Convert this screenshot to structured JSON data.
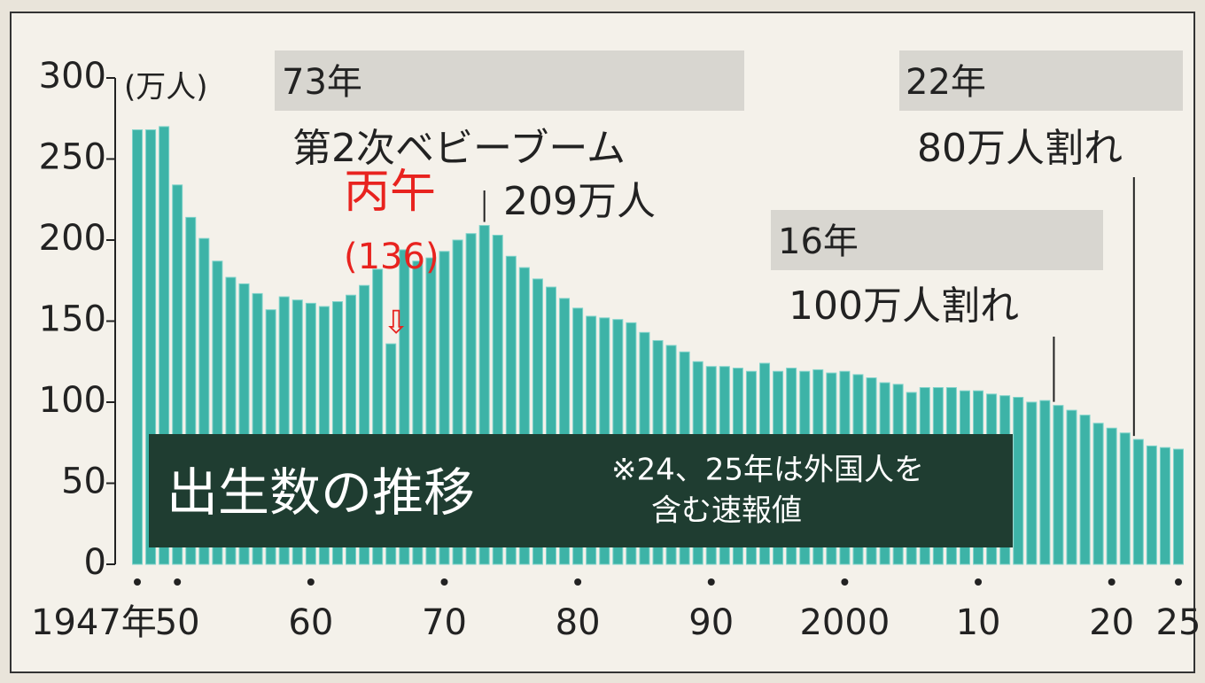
{
  "chart_data": {
    "type": "bar",
    "title": "出生数の推移",
    "note": [
      "※24、25年は外国人を",
      "含む速報値"
    ],
    "y_unit": "(万人)",
    "color": "#3db3a7",
    "annotations": [
      {
        "text": "73年"
      },
      {
        "text": "第2次ベビーブーム"
      },
      {
        "text": "209万人"
      },
      {
        "text": "22年"
      },
      {
        "text": "80万人割れ"
      },
      {
        "text": "16年"
      },
      {
        "text": "100万人割れ"
      },
      {
        "text": "丙午",
        "color": "#e8231f"
      },
      {
        "text": "(136)",
        "color": "#e8231f"
      },
      {
        "text": "⇩",
        "color": "#e8231f"
      }
    ],
    "categories": [
      "1947年",
      null,
      null,
      "50",
      null,
      null,
      null,
      null,
      null,
      null,
      null,
      null,
      null,
      "60",
      null,
      null,
      null,
      null,
      null,
      null,
      null,
      null,
      null,
      "70",
      null,
      null,
      null,
      null,
      null,
      null,
      null,
      null,
      null,
      "80",
      null,
      null,
      null,
      null,
      null,
      null,
      null,
      null,
      null,
      "90",
      null,
      null,
      null,
      null,
      null,
      null,
      null,
      null,
      null,
      "2000",
      null,
      null,
      null,
      null,
      null,
      null,
      null,
      null,
      null,
      "10",
      null,
      null,
      null,
      null,
      null,
      null,
      null,
      null,
      null,
      "20",
      null,
      null,
      null,
      null,
      "25"
    ],
    "values": [
      268,
      268,
      270,
      234,
      214,
      201,
      187,
      177,
      173,
      167,
      157,
      165,
      163,
      161,
      159,
      162,
      166,
      172,
      182,
      136,
      194,
      187,
      189,
      193,
      200,
      204,
      209,
      203,
      190,
      183,
      176,
      171,
      164,
      158,
      153,
      152,
      151,
      149,
      143,
      138,
      135,
      131,
      125,
      122,
      122,
      121,
      119,
      124,
      119,
      121,
      119,
      120,
      118,
      119,
      117,
      115,
      112,
      111,
      106,
      109,
      109,
      109,
      107,
      107,
      105,
      104,
      103,
      100,
      101,
      98,
      95,
      92,
      87,
      84,
      81,
      77,
      73,
      72,
      71
    ],
    "ylim": [
      0,
      300
    ],
    "yticks": [
      0,
      50,
      100,
      150,
      200,
      250,
      300
    ]
  }
}
